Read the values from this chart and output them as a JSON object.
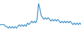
{
  "values": [
    0,
    0,
    0,
    0,
    -1,
    -1,
    -2,
    -1,
    -2,
    -1,
    -2,
    -1,
    -2,
    -1,
    0,
    -1,
    0,
    -1,
    0,
    -1,
    1,
    0,
    1,
    2,
    1,
    2,
    1,
    3,
    12,
    9,
    5,
    4,
    3,
    4,
    3,
    4,
    3,
    2,
    3,
    2,
    3,
    2,
    3,
    2,
    1,
    2,
    1,
    2,
    1,
    2,
    1,
    2,
    1,
    0,
    1,
    0,
    1,
    0,
    1,
    0
  ],
  "line_color": "#4393c9",
  "background_color": "#ffffff",
  "linewidth": 0.9
}
